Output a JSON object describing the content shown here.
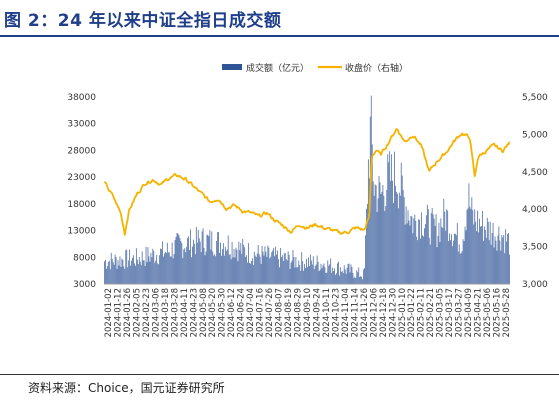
{
  "page": {
    "title": "图 2：24 年以来中证全指日成交额",
    "source": "资料来源：Choice，国元证券研究所"
  },
  "chart_data": {
    "type": "bar+line",
    "legend": [
      {
        "name": "成交额（亿元）",
        "color": "#2f5597",
        "kind": "bar"
      },
      {
        "name": "收盘价（右轴）",
        "color": "#f5b300",
        "kind": "line"
      }
    ],
    "legend_position": "top-center",
    "grid": false,
    "y_left": {
      "min": 3000,
      "max": 38000,
      "ticks": [
        "38000",
        "33000",
        "28000",
        "23000",
        "18000",
        "13000",
        "8000",
        "3000"
      ]
    },
    "y_right": {
      "min": 3000,
      "max": 5500,
      "ticks": [
        "5,500",
        "5,000",
        "4,500",
        "4,000",
        "3,500",
        "3,000"
      ]
    },
    "x_ticks": [
      "2024-01-02",
      "2024-01-12",
      "2024-01-26",
      "2024-02-05",
      "2024-02-23",
      "2024-03-06",
      "2024-03-18",
      "2024-03-28",
      "2024-04-11",
      "2024-04-23",
      "2024-05-08",
      "2024-05-20",
      "2024-05-30",
      "2024-06-12",
      "2024-06-24",
      "2024-07-04",
      "2024-07-16",
      "2024-07-26",
      "2024-08-07",
      "2024-08-19",
      "2024-08-29",
      "2024-09-10",
      "2024-09-24",
      "2024-10-11",
      "2024-10-23",
      "2024-11-04",
      "2024-11-14",
      "2024-11-26",
      "2024-12-06",
      "2024-12-18",
      "2024-12-30",
      "2025-01-10",
      "2025-01-22",
      "2025-02-11",
      "2025-02-21",
      "2025-03-05",
      "2025-03-17",
      "2025-03-27",
      "2025-04-09",
      "2025-04-21",
      "2025-05-06",
      "2025-05-16",
      "2025-05-28"
    ],
    "volume_anchors": [
      [
        0,
        7500
      ],
      [
        4,
        8000
      ],
      [
        8,
        9500
      ],
      [
        9,
        10500
      ],
      [
        12,
        11500
      ],
      [
        15,
        11000
      ],
      [
        18,
        9000
      ],
      [
        20,
        8500
      ],
      [
        24,
        7500
      ],
      [
        27,
        7000
      ],
      [
        29,
        6200
      ],
      [
        30,
        5800
      ],
      [
        31,
        5200
      ],
      [
        32,
        4800
      ],
      [
        32.5,
        26000
      ],
      [
        32.8,
        33500
      ],
      [
        33.2,
        22000
      ],
      [
        34,
        20000
      ],
      [
        35,
        23500
      ],
      [
        36,
        24000
      ],
      [
        37,
        19000
      ],
      [
        38,
        15000
      ],
      [
        39,
        16000
      ],
      [
        40,
        14500
      ],
      [
        41,
        13500
      ],
      [
        42,
        16500
      ],
      [
        43,
        13000
      ],
      [
        44,
        11000
      ],
      [
        44.8,
        20000
      ],
      [
        45.3,
        16000
      ],
      [
        46,
        15000
      ],
      [
        47,
        14000
      ],
      [
        48,
        13000
      ],
      [
        49,
        12500
      ],
      [
        50,
        11000
      ]
    ],
    "price_anchors": [
      [
        0,
        4350
      ],
      [
        1,
        4180
      ],
      [
        2,
        3950
      ],
      [
        2.5,
        3680
      ],
      [
        3,
        3980
      ],
      [
        4,
        4200
      ],
      [
        5,
        4350
      ],
      [
        6,
        4400
      ],
      [
        7,
        4330
      ],
      [
        8,
        4420
      ],
      [
        9,
        4450
      ],
      [
        10,
        4400
      ],
      [
        11,
        4300
      ],
      [
        12,
        4200
      ],
      [
        13,
        4100
      ],
      [
        14,
        4150
      ],
      [
        15,
        4020
      ],
      [
        16,
        4050
      ],
      [
        17,
        3980
      ],
      [
        18,
        3950
      ],
      [
        19,
        3900
      ],
      [
        20,
        3950
      ],
      [
        21,
        3850
      ],
      [
        22,
        3780
      ],
      [
        23,
        3700
      ],
      [
        24,
        3800
      ],
      [
        25,
        3750
      ],
      [
        26,
        3800
      ],
      [
        27,
        3750
      ],
      [
        28,
        3720
      ],
      [
        29,
        3680
      ],
      [
        30,
        3700
      ],
      [
        31,
        3750
      ],
      [
        32,
        3720
      ],
      [
        32.6,
        3900
      ],
      [
        32.9,
        4700
      ],
      [
        33.5,
        4800
      ],
      [
        34,
        4720
      ],
      [
        35,
        4900
      ],
      [
        36,
        5080
      ],
      [
        37,
        4900
      ],
      [
        38,
        5000
      ],
      [
        39,
        4850
      ],
      [
        40,
        4500
      ],
      [
        41,
        4650
      ],
      [
        42,
        4750
      ],
      [
        43,
        4900
      ],
      [
        44,
        5020
      ],
      [
        45,
        4950
      ],
      [
        45.6,
        4420
      ],
      [
        46,
        4700
      ],
      [
        47,
        4780
      ],
      [
        48,
        4850
      ],
      [
        49,
        4780
      ],
      [
        50,
        4900
      ]
    ]
  }
}
